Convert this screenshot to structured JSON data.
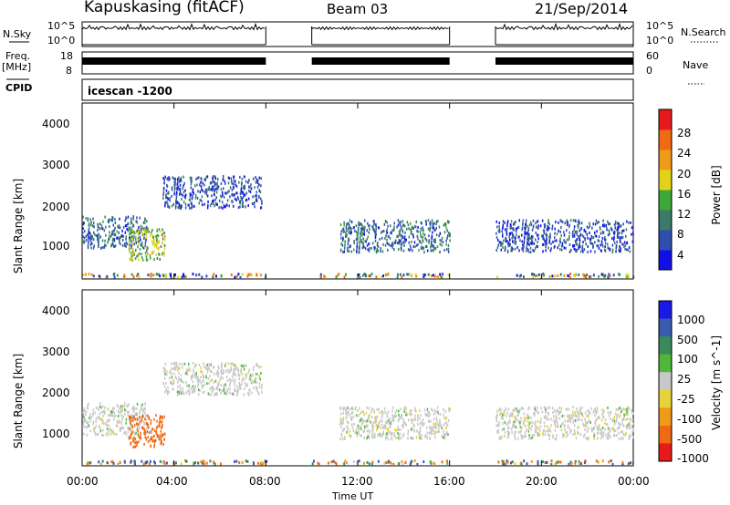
{
  "header": {
    "station": "Kapuskasing (fitACF)",
    "beam": "Beam 03",
    "date": "21/Sep/2014"
  },
  "strip_labels": {
    "nsky": "N.Sky",
    "nsearch": "N.Search",
    "freq": "Freq.",
    "freq_unit": "[MHz]",
    "nave": "Nave",
    "cpid": "CPID",
    "cpid_value": "icescan -1200"
  },
  "strip_ticks": {
    "nsky_top": "10^5",
    "nsky_bottom": "10^0",
    "nsearch_top": "10^5",
    "nsearch_bottom": "10^0",
    "freq_top": "18",
    "freq_bottom": "8",
    "nave_top": "60",
    "nave_bottom": "0"
  },
  "axes": {
    "ylabel": "Slant Range [km]",
    "xlabel": "Time UT",
    "yticks": [
      "1000",
      "2000",
      "3000",
      "4000"
    ],
    "xticks": [
      "00:00",
      "04:00",
      "08:00",
      "12:00",
      "16:00",
      "20:00",
      "00:00"
    ]
  },
  "colorbars": {
    "power": {
      "label": "Power [dB]",
      "ticks": [
        "4",
        "8",
        "12",
        "16",
        "20",
        "24",
        "28"
      ],
      "colors": [
        "#1010e6",
        "#2f4fb0",
        "#3c7a6a",
        "#3fa83a",
        "#e3d21a",
        "#f09a1a",
        "#f06a14",
        "#e61a1a"
      ]
    },
    "velocity": {
      "label": "Velocity [m s^-1]",
      "ticks": [
        "1000",
        "500",
        "100",
        "25",
        "-25",
        "-100",
        "-500",
        "-1000"
      ],
      "colors": [
        "#1a1ae6",
        "#3a5ab0",
        "#3c8a5c",
        "#4fb83a",
        "#c8c8c8",
        "#e8d23a",
        "#f09a1a",
        "#f06a14",
        "#e61a1a"
      ]
    }
  },
  "chart_data": [
    {
      "type": "heatmap",
      "title": "Power [dB]",
      "xlabel": "Time UT",
      "ylabel": "Slant Range [km]",
      "xlim": [
        0,
        24
      ],
      "ylim": [
        200,
        4600
      ],
      "data_gaps_hours": [
        [
          8,
          10
        ],
        [
          16,
          18
        ]
      ],
      "echo_regions": [
        {
          "start": 0.0,
          "end": 2.8,
          "range_min": 1000,
          "range_max": 1800,
          "value": 8
        },
        {
          "start": 2.0,
          "end": 3.6,
          "range_min": 700,
          "range_max": 1500,
          "value": 16
        },
        {
          "start": 3.5,
          "end": 7.8,
          "range_min": 2000,
          "range_max": 2800,
          "value": 6
        },
        {
          "start": 11.2,
          "end": 16.0,
          "range_min": 900,
          "range_max": 1700,
          "value": 8
        },
        {
          "start": 18.0,
          "end": 24.0,
          "range_min": 900,
          "range_max": 1700,
          "value": 6
        }
      ]
    },
    {
      "type": "heatmap",
      "title": "Velocity [m s^-1]",
      "xlabel": "Time UT",
      "ylabel": "Slant Range [km]",
      "xlim": [
        0,
        24
      ],
      "ylim": [
        200,
        4600
      ],
      "data_gaps_hours": [
        [
          8,
          10
        ],
        [
          16,
          18
        ]
      ],
      "echo_regions": [
        {
          "start": 0.0,
          "end": 2.8,
          "range_min": 1000,
          "range_max": 1800,
          "value": 0
        },
        {
          "start": 2.0,
          "end": 3.6,
          "range_min": 700,
          "range_max": 1500,
          "value": -700
        },
        {
          "start": 3.5,
          "end": 7.8,
          "range_min": 2000,
          "range_max": 2800,
          "value": 0
        },
        {
          "start": 11.2,
          "end": 16.0,
          "range_min": 900,
          "range_max": 1700,
          "value": 0
        },
        {
          "start": 18.0,
          "end": 24.0,
          "range_min": 900,
          "range_max": 1700,
          "value": 0
        }
      ]
    }
  ]
}
